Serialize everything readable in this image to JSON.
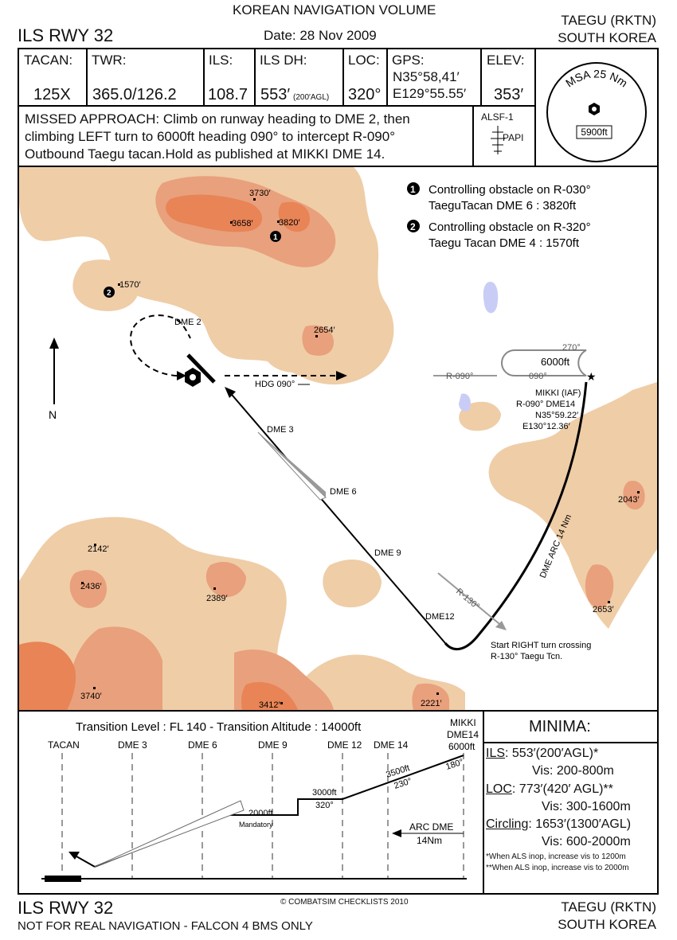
{
  "header": {
    "volume": "KOREAN NAVIGATION VOLUME",
    "procedure": "ILS RWY 32",
    "date": "Date: 28 Nov 2009",
    "airport": "TAEGU (RKTN)",
    "country": "SOUTH KOREA"
  },
  "info": {
    "tacan_label": "TACAN:",
    "tacan_value": "125X",
    "twr_label": "TWR:",
    "twr_value": "365.0/126.2",
    "ils_label": "ILS:",
    "ils_value": "108.7",
    "ilsdh_label": "ILS DH:",
    "ilsdh_value": "553′",
    "ilsdh_sub": "(200′AGL)",
    "loc_label": "LOC:",
    "loc_value": "320°",
    "gps_label": "GPS:",
    "gps_lat": "N35°58,41′",
    "gps_lon": "E129°55.55′",
    "elev_label": "ELEV:",
    "elev_value": "353′"
  },
  "msa": {
    "label": "MSA 25 Nm",
    "alt": "5900ft"
  },
  "missed": {
    "line1": "MISSED APPROACH: Climb on runway heading to DME 2, then",
    "line2": "climbing LEFT turn to 6000ft heading 090° to intercept R-090°",
    "line3": "Outbound Taegu tacan.Hold as published at MIKKI DME 14."
  },
  "lighting": {
    "alsf": "ALSF-1",
    "papi": "PAPI"
  },
  "notes": {
    "n1a": "Controlling obstacle on R-030°",
    "n1b": "TaeguTacan DME 6 : 3820ft",
    "n2a": "Controlling obstacle on R-320°",
    "n2b": "Taegu Tacan DME 4 : 1570ft"
  },
  "map": {
    "north": "N",
    "dme2": "DME 2",
    "dme3": "DME 3",
    "dme6": "DME 6",
    "dme9": "DME 9",
    "dme12": "DME12",
    "hdg": "HDG 090°",
    "hold_alt": "6000ft",
    "hold_out": "270°",
    "hold_in": "090°",
    "r090": "R-090°",
    "mikki1": "MIKKI (IAF)",
    "mikki2": "R-090° DME14",
    "mikki3": "N35°59.22′",
    "mikki4": "E130°12.36′",
    "arc": "DME ARC 14 Nm",
    "r130": "R-130°",
    "turn1": "Start RIGHT turn crossing",
    "turn2": "R-130° Taegu Tcn.",
    "obst1": "1",
    "obst2": "2",
    "elevs": [
      "3730′",
      "3658′",
      "3820′",
      "1570′",
      "2654′",
      "2043′",
      "2142′",
      "2436′",
      "2389′",
      "2653′",
      "3740′",
      "3412′",
      "2221′"
    ]
  },
  "profile": {
    "transition": "Transition Level : FL 140  -  Transition Altitude : 14000ft",
    "fixes": [
      "TACAN",
      "DME 3",
      "DME 6",
      "DME 9",
      "DME 12",
      "DME 14"
    ],
    "mikki": [
      "MIKKI",
      "DME14",
      "6000ft"
    ],
    "alt2000": "2000ft",
    "mandatory": "Mandatory",
    "alt3000": "3000ft",
    "crs320": "320°",
    "alt3500": "3500ft",
    "crs230": "230°",
    "crs180": "180°",
    "arc1": "ARC DME",
    "arc2": "14Nm"
  },
  "minima": {
    "title": "MINIMA:",
    "ils_k": "ILS",
    "ils_v": ": 553′(200′AGL)*",
    "ils_vis": "Vis: 200-800m",
    "loc_k": "LOC",
    "loc_v": ": 773′(420′ AGL)**",
    "loc_vis": "Vis: 300-1600m",
    "circ_k": "Circling",
    "circ_v": ": 1653′(1300′AGL)",
    "circ_vis": "Vis: 600-2000m",
    "fn1": "*When ALS inop, increase vis to 1200m",
    "fn2": "**When ALS inop, increase vis to 2000m"
  },
  "footer": {
    "procedure": "ILS RWY 32",
    "copyright": "© COMBATSIM CHECKLISTS 2010",
    "disclaimer": "NOT FOR REAL NAVIGATION - FALCON 4 BMS ONLY",
    "airport": "TAEGU (RKTN)",
    "country": "SOUTH KOREA"
  }
}
